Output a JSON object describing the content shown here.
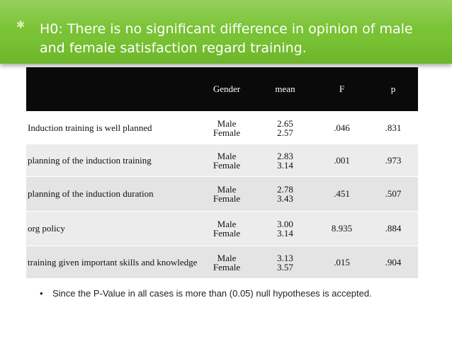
{
  "hypothesis": {
    "bullet_icon": "green-star-bullet",
    "text": "H0: There is no significant difference in opinion of male and female satisfaction regard training."
  },
  "table": {
    "headers": [
      "",
      "Gender",
      "mean",
      "F",
      "p"
    ],
    "rows": [
      {
        "item": "Induction training is well planned",
        "gender_1": "Male",
        "gender_2": "Female",
        "mean_1": "2.65",
        "mean_2": "2.57",
        "f": ".046",
        "p": ".831"
      },
      {
        "item": "planning of the induction training",
        "gender_1": "Male",
        "gender_2": "Female",
        "mean_1": "2.83",
        "mean_2": "3.14",
        "f": ".001",
        "p": ".973"
      },
      {
        "item": "planning of the induction duration",
        "gender_1": "Male",
        "gender_2": "Female",
        "mean_1": "2.78",
        "mean_2": "3.43",
        "f": ".451",
        "p": ".507"
      },
      {
        "item": "org policy",
        "gender_1": "Male",
        "gender_2": "Female",
        "mean_1": "3.00",
        "mean_2": "3.14",
        "f": "8.935",
        "p": ".884"
      },
      {
        "item": "training given important skills and knowledge",
        "gender_1": "Male",
        "gender_2": "Female",
        "mean_1": "3.13",
        "mean_2": "3.57",
        "f": ".015",
        "p": ".904"
      }
    ]
  },
  "conclusion": {
    "bullet": "•",
    "text": "Since the P-Value in all cases is more than (0.05) null hypotheses is accepted."
  },
  "colors": {
    "header_band": "#7ec63a",
    "table_header": "#0a0a0a",
    "table_body": "#e3e3e3"
  }
}
